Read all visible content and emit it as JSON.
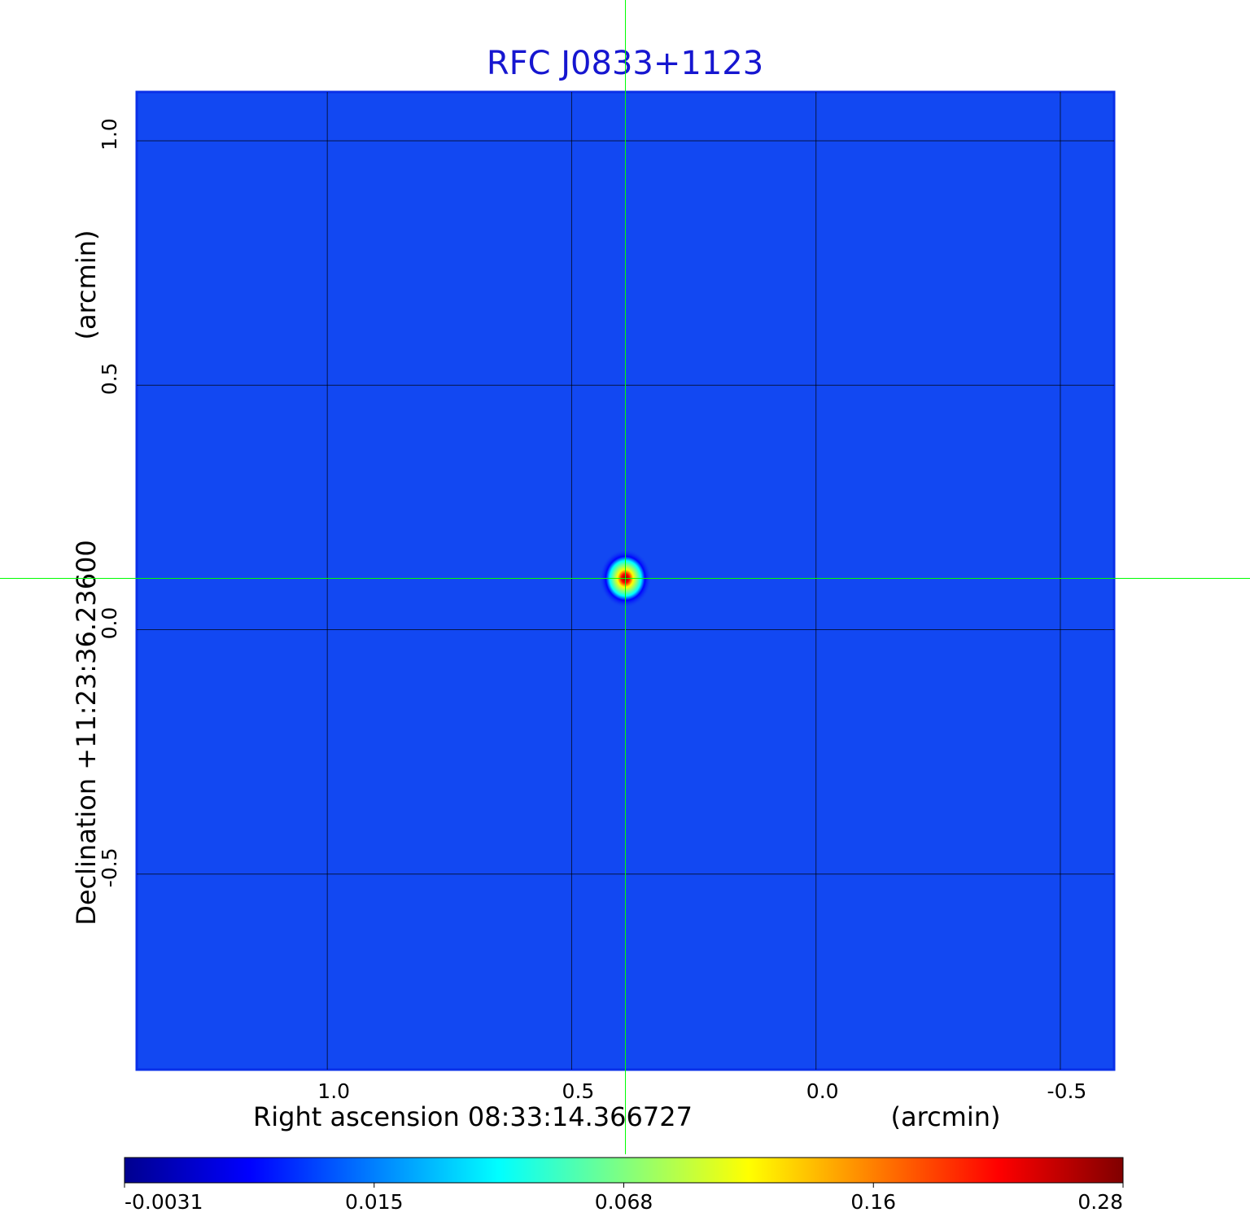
{
  "chart_data": {
    "type": "image",
    "title": "RFC J0833+1123",
    "x_label": "Right ascension  08:33:14.366727",
    "x_unit": "(arcmin)",
    "y_label": "Declination  +11:23:36.23600",
    "y_unit": "(arcmin)",
    "xlim": [
      1.39,
      -0.61
    ],
    "ylim": [
      -0.9,
      1.1
    ],
    "xticks": [
      {
        "value": 1.0,
        "label": "1.0"
      },
      {
        "value": 0.5,
        "label": "0.5"
      },
      {
        "value": 0,
        "label": "0.0"
      },
      {
        "value": -0.5,
        "label": "-0.5"
      }
    ],
    "yticks": [
      {
        "value": 1.0,
        "label": "1.0"
      },
      {
        "value": 0.5,
        "label": "0.5"
      },
      {
        "value": 0,
        "label": "0.0"
      },
      {
        "value": -0.5,
        "label": "-0.5"
      }
    ],
    "grid": true,
    "colormap": "jet",
    "colorbar_ticks": [
      -0.0031,
      0.015,
      0.068,
      0.16,
      0.28
    ],
    "crosshair": {
      "x": 0.39,
      "y": 0.105,
      "color": "#00ff00"
    },
    "source": {
      "x": 0.39,
      "y": 0.105,
      "peak": 0.28
    }
  }
}
